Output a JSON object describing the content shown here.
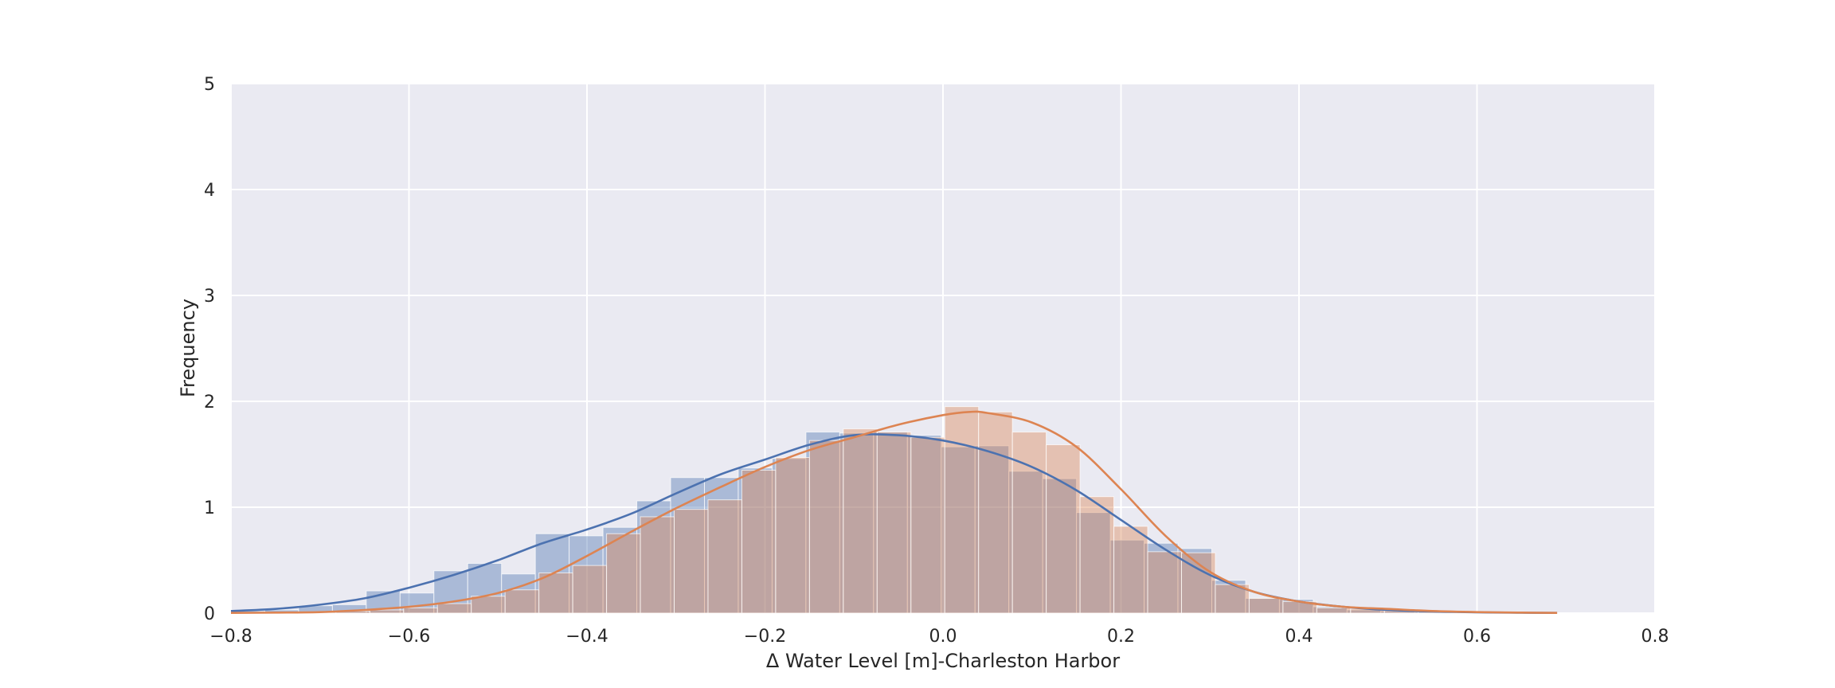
{
  "chart_data": {
    "type": "histogram",
    "xlabel": "Δ Water Level [m]-Charleston Harbor",
    "ylabel": "Frequency",
    "xlim": [
      -0.8,
      0.8
    ],
    "ylim": [
      0,
      5
    ],
    "xticks": [
      "−0.8",
      "−0.6",
      "−0.4",
      "−0.2",
      "0.0",
      "0.2",
      "0.4",
      "0.6",
      "0.8"
    ],
    "xtick_values": [
      -0.8,
      -0.6,
      -0.4,
      -0.2,
      0.0,
      0.2,
      0.4,
      0.6,
      0.8
    ],
    "yticks": [
      "0",
      "1",
      "2",
      "3",
      "4",
      "5"
    ],
    "ytick_values": [
      0,
      1,
      2,
      3,
      4,
      5
    ],
    "grid": true,
    "background": "#EAEAF2",
    "series": [
      {
        "color": "#4C72B0",
        "bins": [
          [
            -0.8,
            -0.762,
            0.02
          ],
          [
            -0.762,
            -0.724,
            0.03
          ],
          [
            -0.724,
            -0.686,
            0.07
          ],
          [
            -0.686,
            -0.648,
            0.08
          ],
          [
            -0.648,
            -0.61,
            0.21
          ],
          [
            -0.61,
            -0.572,
            0.19
          ],
          [
            -0.572,
            -0.534,
            0.4
          ],
          [
            -0.534,
            -0.496,
            0.47
          ],
          [
            -0.496,
            -0.458,
            0.37
          ],
          [
            -0.458,
            -0.42,
            0.75
          ],
          [
            -0.42,
            -0.382,
            0.73
          ],
          [
            -0.382,
            -0.344,
            0.81
          ],
          [
            -0.344,
            -0.306,
            1.06
          ],
          [
            -0.306,
            -0.268,
            1.28
          ],
          [
            -0.268,
            -0.23,
            1.28
          ],
          [
            -0.23,
            -0.192,
            1.37
          ],
          [
            -0.192,
            -0.154,
            1.46
          ],
          [
            -0.154,
            -0.116,
            1.71
          ],
          [
            -0.116,
            -0.078,
            1.7
          ],
          [
            -0.078,
            -0.04,
            1.71
          ],
          [
            -0.04,
            -0.002,
            1.68
          ],
          [
            -0.002,
            0.036,
            1.57
          ],
          [
            0.036,
            0.074,
            1.58
          ],
          [
            0.074,
            0.112,
            1.34
          ],
          [
            0.112,
            0.15,
            1.27
          ],
          [
            0.15,
            0.188,
            0.95
          ],
          [
            0.188,
            0.226,
            0.69
          ],
          [
            0.226,
            0.264,
            0.66
          ],
          [
            0.264,
            0.302,
            0.61
          ],
          [
            0.302,
            0.34,
            0.31
          ],
          [
            0.34,
            0.378,
            0.14
          ],
          [
            0.378,
            0.416,
            0.13
          ],
          [
            0.416,
            0.454,
            0.06
          ],
          [
            0.454,
            0.492,
            0.03
          ],
          [
            0.492,
            0.53,
            0.02
          ],
          [
            0.53,
            0.568,
            0.01
          ],
          [
            0.568,
            0.606,
            0.01
          ],
          [
            0.606,
            0.644,
            0.005
          ],
          [
            0.644,
            0.682,
            0.005
          ]
        ],
        "kde": [
          [
            -0.8,
            0.02
          ],
          [
            -0.75,
            0.04
          ],
          [
            -0.7,
            0.08
          ],
          [
            -0.65,
            0.14
          ],
          [
            -0.6,
            0.24
          ],
          [
            -0.55,
            0.36
          ],
          [
            -0.5,
            0.5
          ],
          [
            -0.45,
            0.66
          ],
          [
            -0.4,
            0.79
          ],
          [
            -0.35,
            0.94
          ],
          [
            -0.3,
            1.13
          ],
          [
            -0.25,
            1.31
          ],
          [
            -0.2,
            1.45
          ],
          [
            -0.15,
            1.59
          ],
          [
            -0.1,
            1.68
          ],
          [
            -0.05,
            1.68
          ],
          [
            0.0,
            1.63
          ],
          [
            0.05,
            1.53
          ],
          [
            0.1,
            1.38
          ],
          [
            0.15,
            1.16
          ],
          [
            0.2,
            0.88
          ],
          [
            0.25,
            0.6
          ],
          [
            0.3,
            0.36
          ],
          [
            0.35,
            0.2
          ],
          [
            0.4,
            0.11
          ],
          [
            0.45,
            0.06
          ],
          [
            0.5,
            0.03
          ],
          [
            0.55,
            0.015
          ],
          [
            0.6,
            0.008
          ],
          [
            0.65,
            0.004
          ],
          [
            0.69,
            0.002
          ]
        ]
      },
      {
        "color": "#DD8452",
        "bins": [
          [
            -0.72,
            -0.682,
            0.01
          ],
          [
            -0.682,
            -0.644,
            0.02
          ],
          [
            -0.644,
            -0.606,
            0.03
          ],
          [
            -0.606,
            -0.568,
            0.05
          ],
          [
            -0.568,
            -0.53,
            0.09
          ],
          [
            -0.53,
            -0.492,
            0.16
          ],
          [
            -0.492,
            -0.454,
            0.22
          ],
          [
            -0.454,
            -0.416,
            0.38
          ],
          [
            -0.416,
            -0.378,
            0.45
          ],
          [
            -0.378,
            -0.34,
            0.75
          ],
          [
            -0.34,
            -0.302,
            0.91
          ],
          [
            -0.302,
            -0.264,
            0.98
          ],
          [
            -0.264,
            -0.226,
            1.07
          ],
          [
            -0.226,
            -0.188,
            1.35
          ],
          [
            -0.188,
            -0.15,
            1.47
          ],
          [
            -0.15,
            -0.112,
            1.63
          ],
          [
            -0.112,
            -0.074,
            1.74
          ],
          [
            -0.074,
            -0.036,
            1.71
          ],
          [
            -0.036,
            0.002,
            1.66
          ],
          [
            0.002,
            0.04,
            1.95
          ],
          [
            0.04,
            0.078,
            1.9
          ],
          [
            0.078,
            0.116,
            1.71
          ],
          [
            0.116,
            0.154,
            1.59
          ],
          [
            0.154,
            0.192,
            1.1
          ],
          [
            0.192,
            0.23,
            0.82
          ],
          [
            0.23,
            0.268,
            0.58
          ],
          [
            0.268,
            0.306,
            0.57
          ],
          [
            0.306,
            0.344,
            0.27
          ],
          [
            0.344,
            0.382,
            0.14
          ],
          [
            0.382,
            0.42,
            0.11
          ],
          [
            0.42,
            0.458,
            0.05
          ],
          [
            0.458,
            0.496,
            0.04
          ],
          [
            0.496,
            0.534,
            0.03
          ],
          [
            0.534,
            0.572,
            0.02
          ],
          [
            0.572,
            0.61,
            0.01
          ],
          [
            0.61,
            0.648,
            0.005
          ]
        ],
        "kde": [
          [
            -0.8,
            0.002
          ],
          [
            -0.75,
            0.005
          ],
          [
            -0.7,
            0.01
          ],
          [
            -0.65,
            0.03
          ],
          [
            -0.6,
            0.06
          ],
          [
            -0.55,
            0.11
          ],
          [
            -0.5,
            0.19
          ],
          [
            -0.45,
            0.33
          ],
          [
            -0.4,
            0.54
          ],
          [
            -0.35,
            0.77
          ],
          [
            -0.3,
            0.99
          ],
          [
            -0.25,
            1.19
          ],
          [
            -0.2,
            1.38
          ],
          [
            -0.15,
            1.54
          ],
          [
            -0.1,
            1.66
          ],
          [
            -0.05,
            1.78
          ],
          [
            0.0,
            1.87
          ],
          [
            0.03,
            1.9
          ],
          [
            0.05,
            1.89
          ],
          [
            0.1,
            1.8
          ],
          [
            0.15,
            1.57
          ],
          [
            0.2,
            1.17
          ],
          [
            0.25,
            0.73
          ],
          [
            0.3,
            0.39
          ],
          [
            0.35,
            0.2
          ],
          [
            0.4,
            0.11
          ],
          [
            0.45,
            0.06
          ],
          [
            0.5,
            0.04
          ],
          [
            0.55,
            0.02
          ],
          [
            0.6,
            0.01
          ],
          [
            0.65,
            0.005
          ],
          [
            0.69,
            0.002
          ]
        ]
      }
    ]
  }
}
